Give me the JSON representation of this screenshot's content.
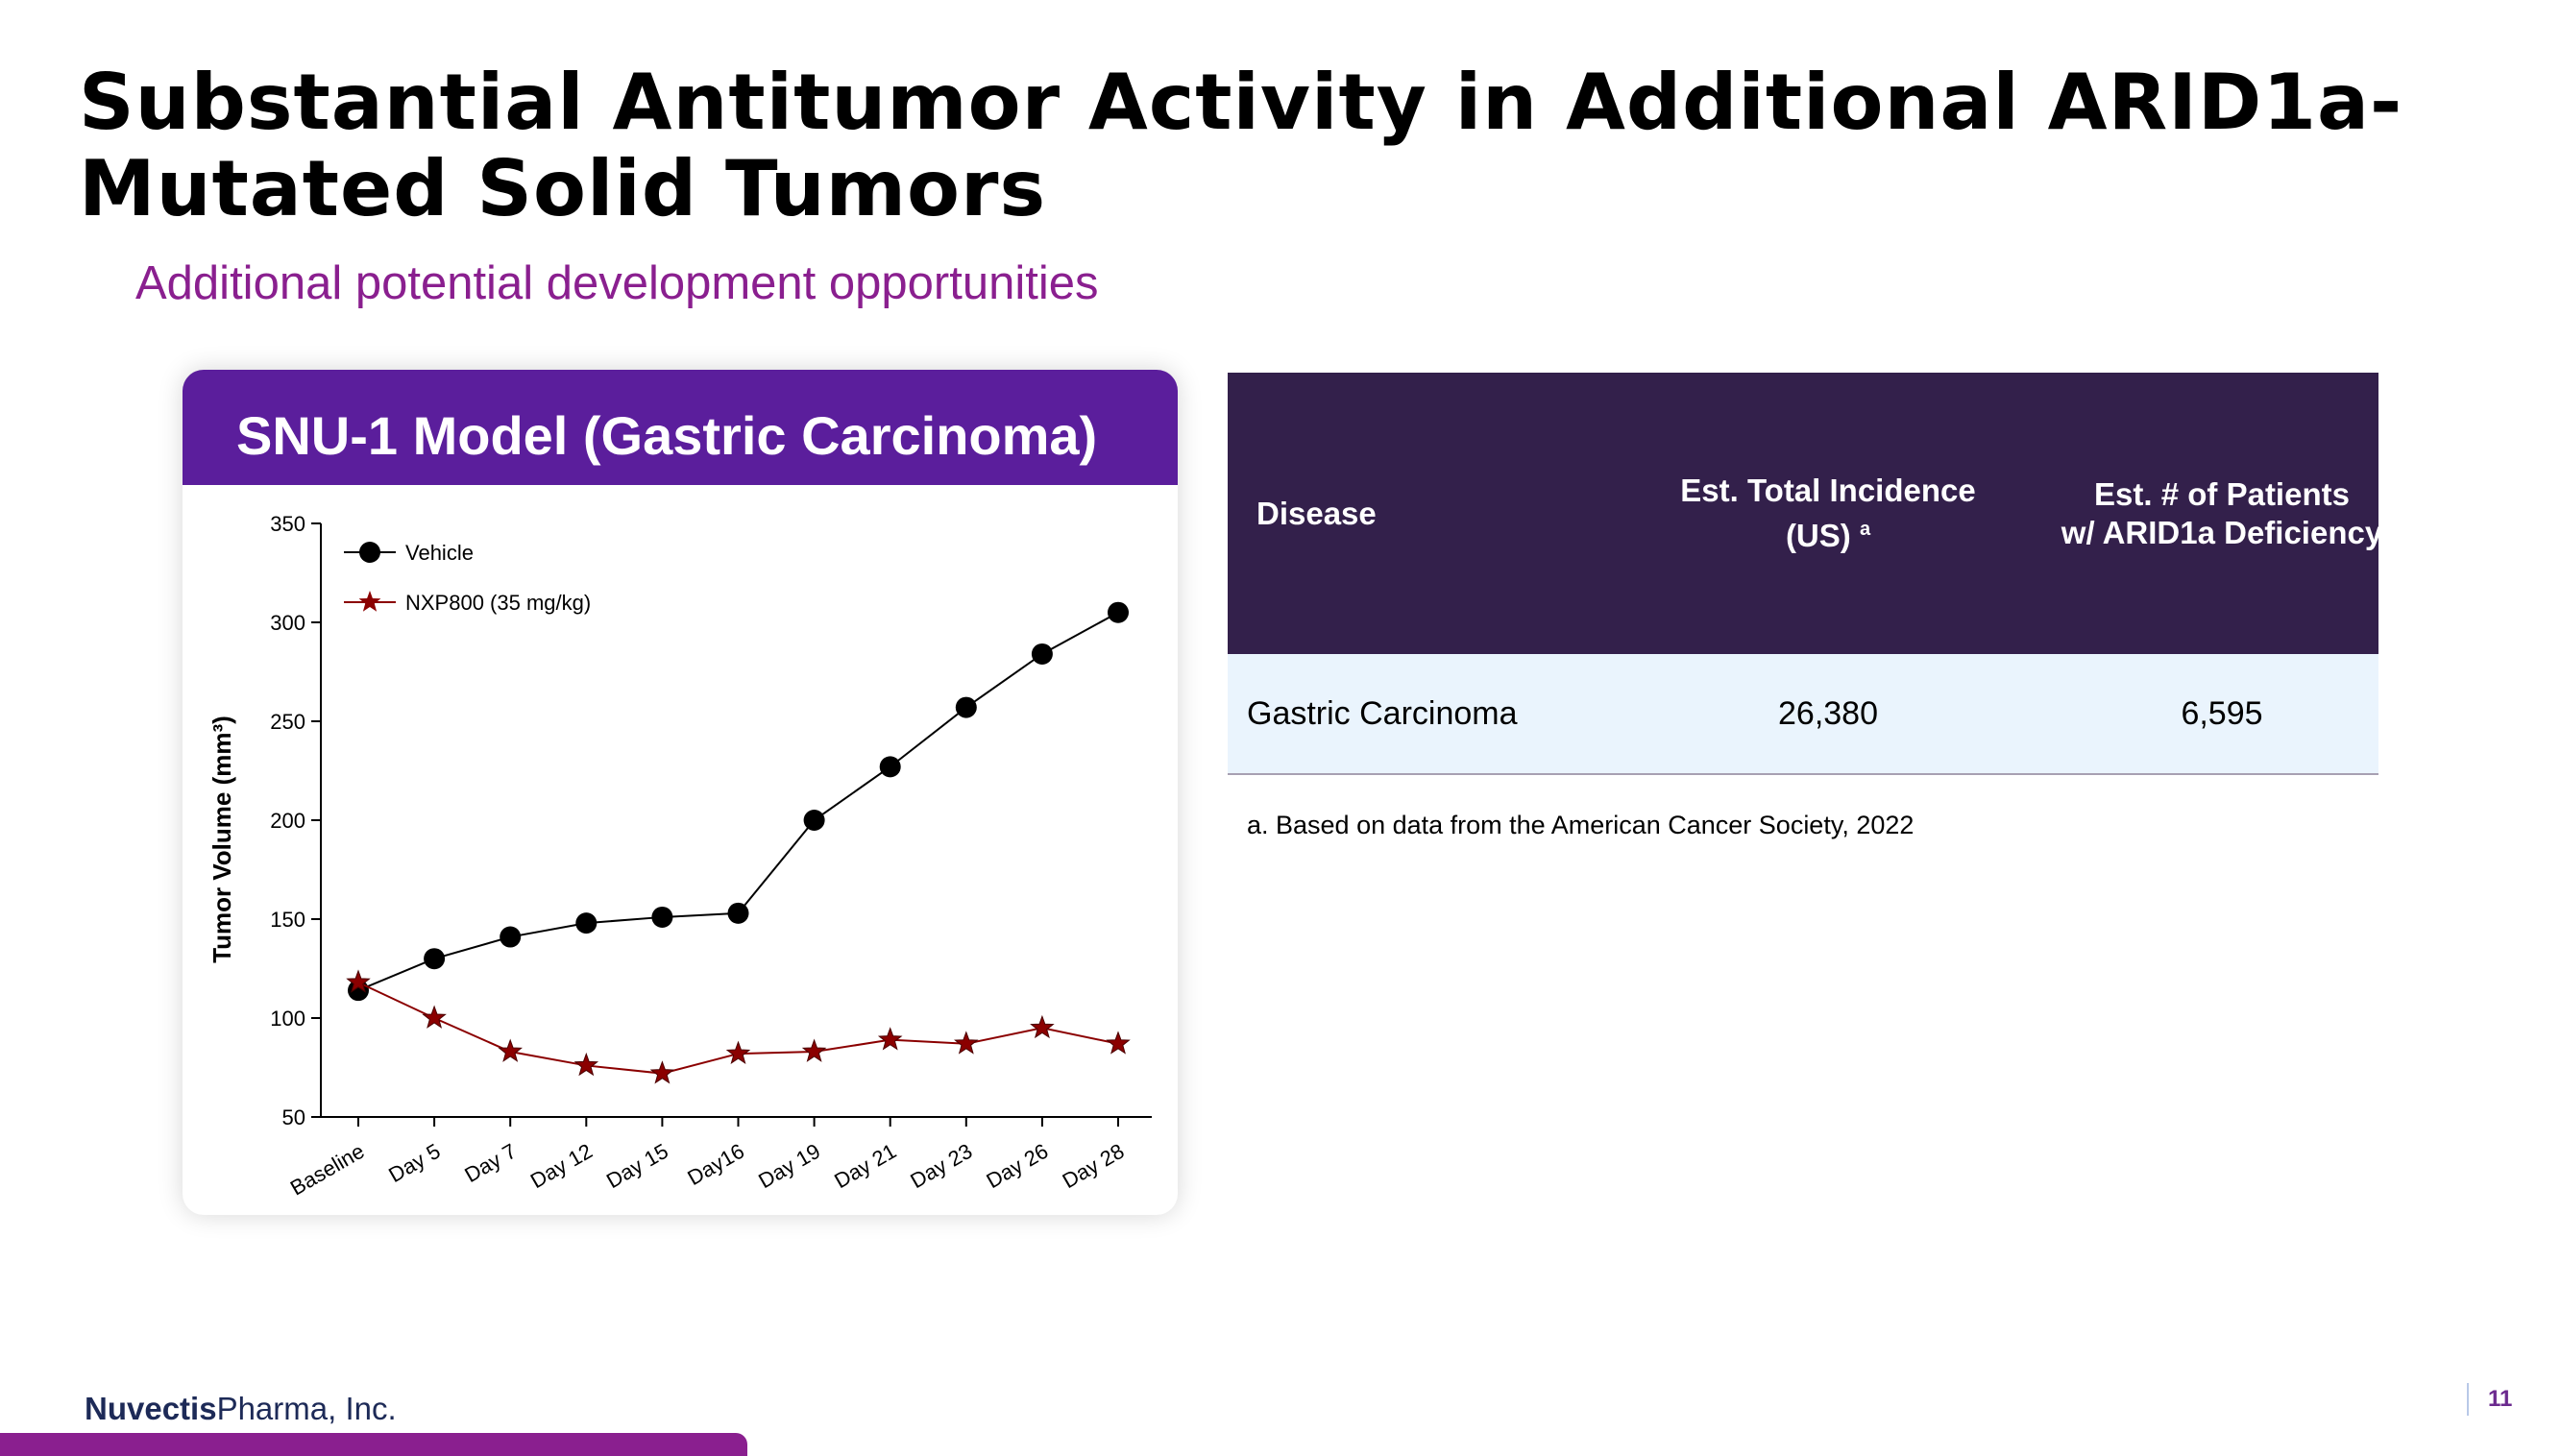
{
  "slide": {
    "title": "Substantial Antitumor Activity in Additional ARID1a-Mutated Solid Tumors",
    "subtitle": "Additional potential development opportunities",
    "page_number": "11"
  },
  "card": {
    "title": "SNU-1 Model (Gastric Carcinoma)"
  },
  "chart_data": {
    "type": "line",
    "title": "",
    "xlabel": "",
    "ylabel": "Tumor Volume (mm³)",
    "ylim": [
      50,
      350
    ],
    "yticks": [
      50,
      100,
      150,
      200,
      250,
      300,
      350
    ],
    "categories": [
      "Baseline",
      "Day 5",
      "Day 7",
      "Day 12",
      "Day 15",
      "Day16",
      "Day 19",
      "Day 21",
      "Day 23",
      "Day 26",
      "Day 28"
    ],
    "grid": false,
    "legend_position": "top-left",
    "series": [
      {
        "name": "Vehicle",
        "marker": "circle",
        "color": "#000000",
        "values": [
          114,
          130,
          141,
          148,
          151,
          153,
          200,
          227,
          257,
          284,
          305
        ]
      },
      {
        "name": "NXP800 (35 mg/kg)",
        "marker": "star",
        "color": "#8b0000",
        "values": [
          118,
          100,
          83,
          76,
          72,
          82,
          83,
          89,
          87,
          95,
          87
        ]
      }
    ]
  },
  "table": {
    "headers": {
      "disease": "Disease",
      "incidence": "Est. Total Incidence",
      "incidence_line2": "(US)",
      "incidence_sup": "a",
      "patients": "Est. # of Patients",
      "patients_line2": "w/ ARID1a Deficiency"
    },
    "rows": [
      {
        "disease": "Gastric Carcinoma",
        "incidence": "26,380",
        "patients": "6,595"
      }
    ],
    "footnote": "a.  Based on data from the American Cancer Society, 2022"
  },
  "footer": {
    "brand": "Nuvectis",
    "company": "Pharma, Inc."
  },
  "colors": {
    "accent_purple": "#8a1f8f",
    "card_header": "#5b1e9c",
    "table_header": "#33204b",
    "table_row": "#eaf4fd",
    "nxp_series": "#8b0000"
  }
}
